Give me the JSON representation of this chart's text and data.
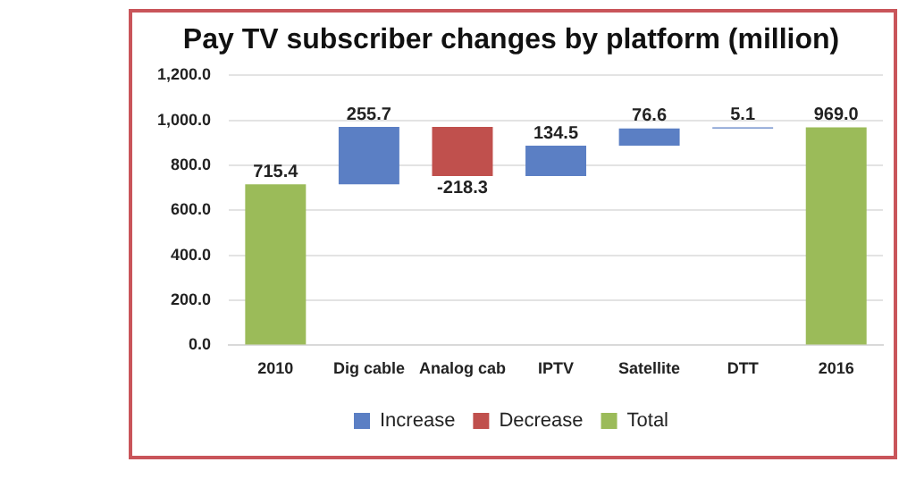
{
  "chart_data": {
    "type": "bar",
    "title": "Pay TV subscriber changes by platform (million)",
    "categories": [
      "2010",
      "Dig cable",
      "Analog cab",
      "IPTV",
      "Satellite",
      "DTT",
      "2016"
    ],
    "series": [
      {
        "name": "Increase",
        "color": "#5b7fc4",
        "values": [
          null,
          255.7,
          null,
          134.5,
          76.6,
          5.1,
          null
        ],
        "base": [
          null,
          715.4,
          null,
          752.8,
          887.3,
          963.9,
          null
        ],
        "value_labels": [
          null,
          "255.7",
          null,
          "134.5",
          "76.6",
          "5.1",
          null
        ]
      },
      {
        "name": "Decrease",
        "color": "#c0504d",
        "values": [
          null,
          null,
          -218.3,
          null,
          null,
          null,
          null
        ],
        "base": [
          null,
          null,
          971.1,
          null,
          null,
          null,
          null
        ],
        "value_labels": [
          null,
          null,
          "-218.3",
          null,
          null,
          null,
          null
        ]
      },
      {
        "name": "Total",
        "color": "#9bbb59",
        "values": [
          715.4,
          null,
          null,
          null,
          null,
          null,
          969.0
        ],
        "base": [
          0,
          null,
          null,
          null,
          null,
          null,
          0
        ],
        "value_labels": [
          "715.4",
          null,
          null,
          null,
          null,
          null,
          "969.0"
        ]
      }
    ],
    "ylim": [
      0,
      1200
    ],
    "yticks": [
      {
        "value": 0,
        "label": "0.0"
      },
      {
        "value": 200,
        "label": "200.0"
      },
      {
        "value": 400,
        "label": "400.0"
      },
      {
        "value": 600,
        "label": "600.0"
      },
      {
        "value": 800,
        "label": "800.0"
      },
      {
        "value": 1000,
        "label": "1,000.0"
      },
      {
        "value": 1200,
        "label": "1,200.0"
      }
    ],
    "grid": "y",
    "legend": "bottom"
  }
}
